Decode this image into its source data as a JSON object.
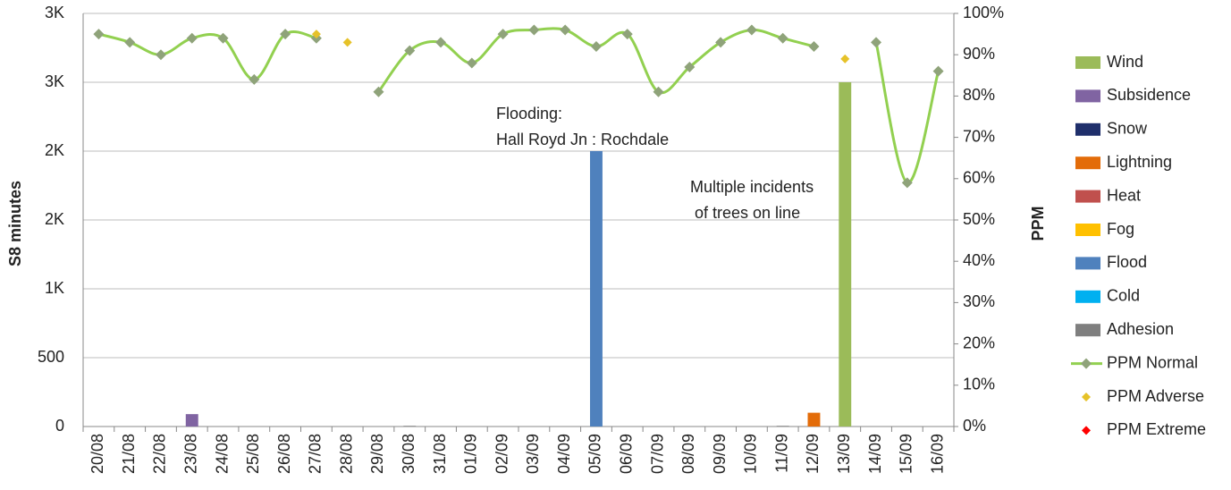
{
  "chart_data": {
    "type": "bar",
    "categories": [
      "20/08",
      "21/08",
      "22/08",
      "23/08",
      "24/08",
      "25/08",
      "26/08",
      "27/08",
      "28/08",
      "29/08",
      "30/08",
      "31/08",
      "01/09",
      "02/09",
      "03/09",
      "04/09",
      "05/09",
      "06/09",
      "07/09",
      "08/09",
      "09/09",
      "10/09",
      "11/09",
      "12/09",
      "13/09",
      "14/09",
      "15/09",
      "16/09"
    ],
    "ylabel": "S8 minutes",
    "y2label": "PPM",
    "ylim": [
      0,
      3000
    ],
    "yticks": [
      0,
      500,
      {
        "value": 1000,
        "label": "1K"
      },
      {
        "value": 1500,
        "label": "2K"
      },
      {
        "value": 2000,
        "label": "2K"
      },
      {
        "value": 2500,
        "label": "3K"
      },
      {
        "value": 3000,
        "label": "3K"
      }
    ],
    "y2lim": [
      0,
      100
    ],
    "y2ticks": [
      {
        "value": 0,
        "label": "0%"
      },
      {
        "value": 10,
        "label": "10%"
      },
      {
        "value": 20,
        "label": "20%"
      },
      {
        "value": 30,
        "label": "30%"
      },
      {
        "value": 40,
        "label": "40%"
      },
      {
        "value": 50,
        "label": "50%"
      },
      {
        "value": 60,
        "label": "60%"
      },
      {
        "value": 70,
        "label": "70%"
      },
      {
        "value": 80,
        "label": "80%"
      },
      {
        "value": 90,
        "label": "90%"
      },
      {
        "value": 100,
        "label": "100%"
      }
    ],
    "grid": true,
    "legend": "right",
    "annotations": [
      "Flooding:",
      "Hall Royd Jn : Rochdale",
      "Multiple incidents",
      " of trees on line"
    ],
    "series": [
      {
        "name": "Wind",
        "color": "#9bbb59",
        "values": [
          0,
          0,
          0,
          0,
          0,
          0,
          0,
          0,
          0,
          0,
          0,
          0,
          0,
          0,
          0,
          0,
          0,
          0,
          0,
          0,
          0,
          0,
          0,
          0,
          2500,
          0,
          0,
          0
        ]
      },
      {
        "name": "Subsidence",
        "color": "#8064a2",
        "values": [
          0,
          0,
          0,
          90,
          0,
          0,
          0,
          0,
          0,
          0,
          0,
          0,
          0,
          0,
          0,
          0,
          0,
          0,
          0,
          0,
          0,
          0,
          0,
          0,
          0,
          0,
          0,
          0
        ]
      },
      {
        "name": "Snow",
        "color": "#1f2f6b",
        "values": [
          0,
          0,
          0,
          0,
          0,
          0,
          0,
          0,
          0,
          0,
          0,
          0,
          0,
          0,
          0,
          0,
          0,
          0,
          0,
          0,
          0,
          0,
          0,
          0,
          0,
          0,
          0,
          0
        ]
      },
      {
        "name": "Lightning",
        "color": "#e36c09",
        "values": [
          0,
          0,
          0,
          0,
          0,
          0,
          0,
          0,
          0,
          0,
          0,
          0,
          0,
          0,
          0,
          0,
          0,
          0,
          0,
          0,
          0,
          0,
          0,
          100,
          0,
          0,
          0,
          0
        ]
      },
      {
        "name": "Heat",
        "color": "#c0504d",
        "values": [
          0,
          0,
          0,
          0,
          0,
          0,
          0,
          0,
          0,
          0,
          0,
          0,
          0,
          0,
          0,
          0,
          0,
          0,
          0,
          0,
          0,
          0,
          0,
          0,
          0,
          0,
          0,
          0
        ]
      },
      {
        "name": "Fog",
        "color": "#ffc000",
        "values": [
          0,
          0,
          0,
          0,
          0,
          0,
          0,
          0,
          0,
          0,
          0,
          0,
          0,
          0,
          0,
          0,
          0,
          0,
          0,
          0,
          0,
          0,
          0,
          0,
          0,
          0,
          0,
          0
        ]
      },
      {
        "name": "Flood",
        "color": "#4f81bd",
        "values": [
          0,
          0,
          0,
          0,
          0,
          0,
          0,
          0,
          0,
          0,
          0,
          0,
          0,
          0,
          0,
          0,
          2000,
          0,
          0,
          0,
          0,
          0,
          0,
          0,
          0,
          0,
          0,
          0
        ]
      },
      {
        "name": "Cold",
        "color": "#00b0f0",
        "values": [
          0,
          0,
          0,
          0,
          0,
          0,
          0,
          0,
          0,
          0,
          0,
          0,
          0,
          0,
          0,
          0,
          0,
          0,
          0,
          0,
          0,
          0,
          0,
          0,
          0,
          0,
          0,
          0
        ]
      },
      {
        "name": "Adhesion",
        "color": "#7f7f7f",
        "values": [
          0,
          0,
          0,
          0,
          0,
          0,
          0,
          0,
          0,
          0,
          5,
          0,
          0,
          0,
          0,
          0,
          0,
          0,
          0,
          0,
          0,
          0,
          5,
          0,
          0,
          0,
          0,
          0
        ]
      },
      {
        "name": "PPM Normal",
        "type": "line",
        "axis": "y2",
        "color": "#92d050",
        "marker_color": "#8fa37a",
        "values": [
          95,
          93,
          90,
          94,
          94,
          84,
          95,
          94,
          null,
          81,
          91,
          93,
          88,
          95,
          96,
          96,
          92,
          95,
          81,
          87,
          93,
          96,
          94,
          92,
          null,
          93,
          59,
          86
        ]
      },
      {
        "name": "PPM Adverse",
        "type": "scatter",
        "axis": "y2",
        "color": "#e6c229",
        "values": [
          null,
          null,
          null,
          null,
          null,
          null,
          null,
          95,
          93,
          null,
          null,
          null,
          null,
          null,
          null,
          null,
          null,
          null,
          null,
          null,
          null,
          null,
          null,
          null,
          89,
          null,
          null,
          null
        ]
      },
      {
        "name": "PPM Extreme",
        "type": "scatter",
        "axis": "y2",
        "color": "#ff0000",
        "values": [
          null,
          null,
          null,
          null,
          null,
          null,
          null,
          null,
          null,
          null,
          null,
          null,
          null,
          null,
          null,
          null,
          null,
          null,
          null,
          null,
          null,
          null,
          null,
          null,
          null,
          null,
          null,
          null
        ]
      }
    ]
  }
}
